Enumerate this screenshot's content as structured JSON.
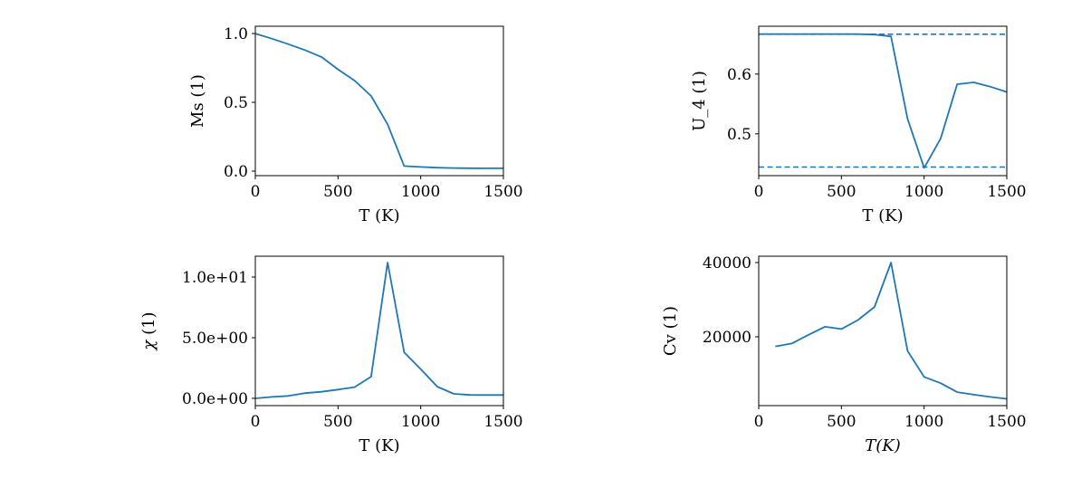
{
  "chart_data": [
    {
      "type": "line",
      "xlabel": "T (K)",
      "ylabel": "Ms (1)",
      "xlim": [
        0,
        1500
      ],
      "ylim": [
        -0.033,
        1.053
      ],
      "xticks": [
        0,
        500,
        1000,
        1500
      ],
      "xtick_labels": [
        "0",
        "500",
        "1000",
        "1500"
      ],
      "yticks": [
        0.0,
        0.5,
        1.0
      ],
      "ytick_labels": [
        "0.0",
        "0.5",
        "1.0"
      ],
      "color": "#1f77b4",
      "x": [
        0,
        100,
        200,
        300,
        400,
        500,
        600,
        700,
        800,
        900,
        1000,
        1100,
        1200,
        1300,
        1400,
        1500
      ],
      "y": [
        1.0,
        0.963,
        0.923,
        0.88,
        0.83,
        0.74,
        0.658,
        0.546,
        0.34,
        0.037,
        0.03,
        0.025,
        0.022,
        0.021,
        0.02,
        0.02
      ],
      "hlines": []
    },
    {
      "type": "line",
      "xlabel": "T (K)",
      "ylabel": "U_4 (1)",
      "xlim": [
        0,
        1500
      ],
      "ylim": [
        0.43,
        0.68
      ],
      "xticks": [
        0,
        500,
        1000,
        1500
      ],
      "xtick_labels": [
        "0",
        "500",
        "1000",
        "1500"
      ],
      "yticks": [
        0.5,
        0.6
      ],
      "ytick_labels": [
        "0.5",
        "0.6"
      ],
      "color": "#1f77b4",
      "x": [
        0,
        100,
        200,
        300,
        400,
        500,
        600,
        700,
        800,
        900,
        1000,
        1100,
        1200,
        1300,
        1400,
        1500
      ],
      "y": [
        0.667,
        0.667,
        0.667,
        0.667,
        0.667,
        0.667,
        0.667,
        0.666,
        0.663,
        0.525,
        0.443,
        0.492,
        0.583,
        0.586,
        0.579,
        0.57
      ],
      "hlines": [
        0.6667,
        0.4444
      ]
    },
    {
      "type": "line",
      "xlabel": "T (K)",
      "ylabel": "χ (1)",
      "xlim": [
        0,
        1500
      ],
      "ylim": [
        -0.6,
        11.72
      ],
      "xticks": [
        0,
        500,
        1000,
        1500
      ],
      "xtick_labels": [
        "0",
        "500",
        "1000",
        "1500"
      ],
      "yticks": [
        0,
        5,
        10
      ],
      "ytick_labels": [
        "0.0e+00",
        "5.0e+00",
        "1.0e+01"
      ],
      "color": "#1f77b4",
      "x": [
        0,
        100,
        200,
        300,
        400,
        500,
        600,
        700,
        800,
        900,
        1000,
        1100,
        1200,
        1300,
        1400,
        1500
      ],
      "y": [
        0.0,
        0.12,
        0.2,
        0.43,
        0.54,
        0.72,
        0.92,
        1.79,
        11.2,
        3.8,
        2.4,
        0.97,
        0.37,
        0.28,
        0.27,
        0.27
      ],
      "hlines": []
    },
    {
      "type": "line",
      "xlabel": "T(K)",
      "ylabel": "Cv (1)",
      "xlim": [
        0,
        1500
      ],
      "ylim": [
        1460,
        41700
      ],
      "xticks": [
        0,
        500,
        1000,
        1500
      ],
      "xtick_labels": [
        "0",
        "500",
        "1000",
        "1500"
      ],
      "yticks": [
        20000,
        40000
      ],
      "ytick_labels": [
        "20000",
        "40000"
      ],
      "color": "#1f77b4",
      "x": [
        100,
        200,
        300,
        400,
        500,
        600,
        700,
        800,
        900,
        1000,
        1100,
        1200,
        1300,
        1400,
        1500
      ],
      "y": [
        17400,
        18200,
        20500,
        22700,
        22100,
        24500,
        28050,
        40000,
        16200,
        9200,
        7500,
        5100,
        4400,
        3800,
        3300
      ],
      "hlines": []
    }
  ]
}
